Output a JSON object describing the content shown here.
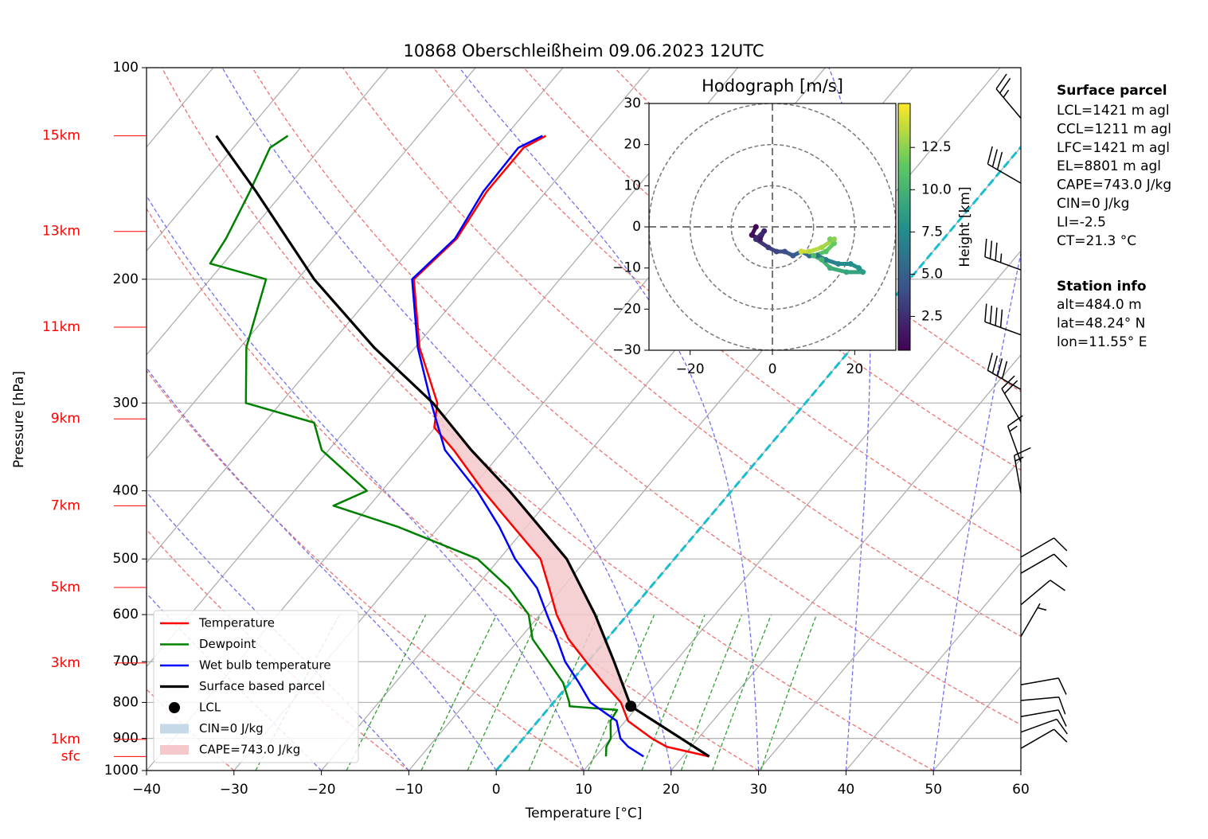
{
  "chart_data": [
    {
      "type": "skewt",
      "title": "10868 Oberschleißheim 09.06.2023 12UTC",
      "x_label": "Temperature [°C]",
      "y_label": "Pressure [hPa]",
      "xlim": [
        -40,
        60
      ],
      "ylim": [
        1000,
        100
      ],
      "log_y": true,
      "grid": true,
      "xticks": [
        {
          "value": -40,
          "label": "−40"
        },
        {
          "value": -30,
          "label": "−30"
        },
        {
          "value": -20,
          "label": "−20"
        },
        {
          "value": -10,
          "label": "−10"
        },
        0,
        10,
        20,
        30,
        40,
        50,
        60
      ],
      "yticks": [
        100,
        200,
        300,
        400,
        500,
        600,
        700,
        800,
        900,
        1000
      ],
      "series": [
        {
          "name": "Temperature",
          "color": "#ff0000",
          "pressure": [
            955,
            925,
            900,
            850,
            800,
            750,
            700,
            650,
            600,
            550,
            500,
            450,
            400,
            350,
            325,
            300,
            250,
            200,
            175,
            150,
            130,
            125
          ],
          "values": [
            23.0,
            17.2,
            14.7,
            10.3,
            7.7,
            3.8,
            -0.2,
            -4.4,
            -8.1,
            -11.5,
            -15.3,
            -21.5,
            -28.4,
            -35.7,
            -40.1,
            -42.1,
            -49.5,
            -56.7,
            -55.7,
            -56.8,
            -56.8,
            -55.4
          ]
        },
        {
          "name": "Dewpoint",
          "color": "#008000",
          "pressure": [
            955,
            925,
            900,
            850,
            820,
            810,
            800,
            750,
            700,
            650,
            600,
            550,
            500,
            450,
            420,
            400,
            350,
            320,
            300,
            250,
            200,
            190,
            175,
            150,
            130,
            125
          ],
          "values": [
            11.2,
            10.3,
            10.0,
            8.3,
            8.0,
            2.2,
            1.8,
            -0.8,
            -4.5,
            -8.5,
            -11.3,
            -16.1,
            -22.5,
            -34.7,
            -44.1,
            -41.7,
            -50.8,
            -54.3,
            -64.0,
            -69.3,
            -73.6,
            -81.5,
            -82.1,
            -83.9,
            -85.8,
            -84.9
          ]
        },
        {
          "name": "Wet bulb temperature",
          "color": "#0000ff",
          "pressure": [
            955,
            925,
            900,
            850,
            800,
            750,
            700,
            650,
            600,
            550,
            500,
            450,
            400,
            350,
            300,
            250,
            200,
            175,
            150,
            130,
            125
          ],
          "values": [
            15.5,
            12.8,
            11.1,
            9.0,
            4.2,
            1.0,
            -2.6,
            -5.7,
            -9.2,
            -12.9,
            -18.2,
            -23.1,
            -29.1,
            -36.7,
            -42.8,
            -49.7,
            -56.9,
            -55.9,
            -57.2,
            -57.4,
            -55.8
          ]
        },
        {
          "name": "Surface based parcel",
          "color": "#000000",
          "pressure": [
            955,
            810,
            700,
            600,
            500,
            400,
            350,
            300,
            250,
            200,
            150,
            125
          ],
          "values": [
            23.0,
            9.2,
            3.0,
            -3.7,
            -12.3,
            -25.4,
            -33.7,
            -42.6,
            -54.7,
            -68.1,
            -83.2,
            -93.1
          ]
        }
      ],
      "lcl": {
        "name": "LCL",
        "color": "#000000",
        "pressure": 810,
        "temperature": 9.2
      },
      "shading": [
        {
          "name": "CIN=0 J/kg",
          "color": "#c6d9e8"
        },
        {
          "name": "CAPE=743.0 J/kg",
          "color": "#f5c9cb"
        }
      ],
      "height_labels": [
        {
          "label": "15km",
          "pressure": 125
        },
        {
          "label": "13km",
          "pressure": 171
        },
        {
          "label": "11km",
          "pressure": 234
        },
        {
          "label": "9km",
          "pressure": 316
        },
        {
          "label": "7km",
          "pressure": 420
        },
        {
          "label": "5km",
          "pressure": 549
        },
        {
          "label": "3km",
          "pressure": 703
        },
        {
          "label": "1km",
          "pressure": 903
        },
        {
          "label": "sfc",
          "pressure": 955
        }
      ],
      "wind": {
        "pressure": [
          118,
          146,
          194,
          240,
          287,
          319,
          364,
          403,
          497,
          524,
          581,
          645,
          755,
          795,
          838,
          882,
          930
        ],
        "direction": [
          320,
          300,
          290,
          290,
          300,
          330,
          340,
          350,
          60,
          60,
          50,
          30,
          80,
          85,
          80,
          70,
          60
        ],
        "speed": [
          25,
          30,
          35,
          40,
          40,
          20,
          15,
          15,
          10,
          10,
          10,
          5,
          10,
          10,
          10,
          10,
          10
        ]
      },
      "surface_parcel": {
        "title": "Surface parcel",
        "lines": [
          "LCL=1421 m agl",
          "CCL=1211 m agl",
          "LFC=1421 m agl",
          "EL=8801 m agl",
          "CAPE=743.0 J/kg",
          "CIN=0 J/kg",
          "LI=-2.5",
          "CT=21.3 °C"
        ]
      },
      "station_info": {
        "title": "Station info",
        "lines": [
          "alt=484.0 m",
          "lat=48.24° N",
          "lon=11.55° E"
        ]
      }
    },
    {
      "type": "hodograph",
      "title": "Hodograph [m/s]",
      "colorbar_label": "Height [km]",
      "xlim": [
        -30,
        30
      ],
      "ylim": [
        -30,
        30
      ],
      "xticks": [
        {
          "value": -20,
          "label": "−20"
        },
        0,
        20
      ],
      "yticks": [
        {
          "value": -30,
          "label": "−30"
        },
        {
          "value": -20,
          "label": "−20"
        },
        {
          "value": -10,
          "label": "−10"
        },
        0,
        10,
        20,
        30
      ],
      "clim": [
        0.5,
        15.1
      ],
      "cticks": [
        2.5,
        {
          "value": 5.0,
          "label": "5.0"
        },
        7.5,
        {
          "value": 10.0,
          "label": "10.0"
        },
        12.5
      ],
      "u": [
        -4,
        -5,
        -3,
        -2,
        -4,
        -1,
        1,
        3,
        5,
        7,
        9,
        11,
        13,
        16,
        19,
        21,
        22,
        18,
        14,
        12,
        10,
        13,
        15,
        14,
        15,
        12,
        9,
        7
      ],
      "v": [
        0,
        -2,
        -3,
        -1,
        -3,
        -5,
        -6,
        -6,
        -7,
        -6,
        -7,
        -7,
        -8,
        -9,
        -9,
        -10,
        -11,
        -11,
        -10,
        -8,
        -7,
        -6,
        -4,
        -3,
        -3,
        -5,
        -6,
        -6
      ],
      "height": [
        0.5,
        1,
        1.5,
        2,
        2.5,
        3,
        3.5,
        4,
        4.5,
        5,
        5.5,
        6,
        6.5,
        7,
        7.5,
        8,
        8.5,
        9,
        9.5,
        10,
        10.5,
        11,
        11.5,
        12,
        12.5,
        13,
        13.5,
        14
      ]
    }
  ]
}
